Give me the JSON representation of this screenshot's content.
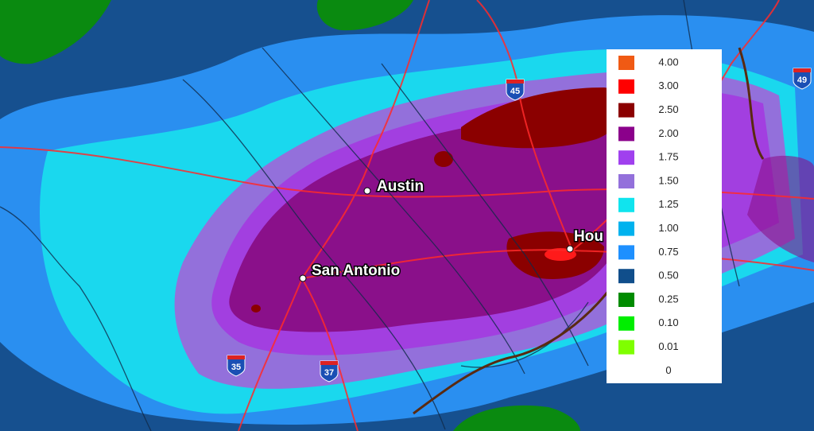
{
  "cities": [
    "Austin",
    "San Antonio",
    "Hou"
  ],
  "highway_shields": [
    "45",
    "49",
    "35",
    "37"
  ],
  "legend": {
    "items": [
      {
        "label": "4.00",
        "color": "#f05a14"
      },
      {
        "label": "3.00",
        "color": "#ff0000"
      },
      {
        "label": "2.50",
        "color": "#8b0000"
      },
      {
        "label": "2.00",
        "color": "#8b008b"
      },
      {
        "label": "1.75",
        "color": "#a040ee"
      },
      {
        "label": "1.50",
        "color": "#9370db"
      },
      {
        "label": "1.25",
        "color": "#10e4ee"
      },
      {
        "label": "1.00",
        "color": "#00b2ee"
      },
      {
        "label": "0.75",
        "color": "#1e90ff"
      },
      {
        "label": "0.50",
        "color": "#104e8b"
      },
      {
        "label": "0.25",
        "color": "#008b00"
      },
      {
        "label": "0.10",
        "color": "#00ee00"
      },
      {
        "label": "0.01",
        "color": "#7fff00"
      },
      {
        "label": "0"
      }
    ]
  }
}
